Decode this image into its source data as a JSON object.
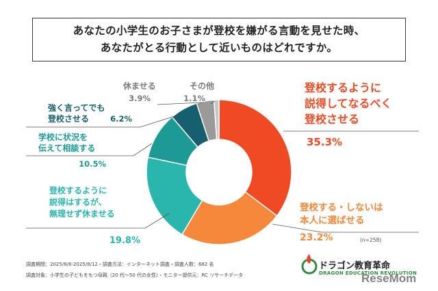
{
  "chart_data": {
    "type": "pie",
    "title": [
      "あなたの小学生のお子さまが登校を嫌がる言動を見せた時、",
      "あなたがとる行動として近いものはどれですか。"
    ],
    "categories": [
      [
        "登校するように",
        "説得してなるべく",
        "登校させる"
      ],
      [
        "登校する・しないは",
        "本人に選ばせる"
      ],
      [
        "登校するように",
        "説得はするが、",
        "無理せず休ませる"
      ],
      [
        "学校に状況を",
        "伝えて相談する"
      ],
      [
        "強く言ってでも",
        "登校させる"
      ],
      [
        "休ませる"
      ],
      [
        "その他"
      ]
    ],
    "values": [
      35.3,
      23.2,
      19.8,
      10.5,
      6.2,
      3.9,
      1.1
    ],
    "value_labels": [
      "35.3%",
      "23.2%",
      "19.8%",
      "10.5%",
      "6.2%",
      "3.9%",
      "1.1%"
    ],
    "colors": [
      "#ef4a23",
      "#f5883a",
      "#2ab5ad",
      "#1e9a96",
      "#165f6e",
      "#9a9a9a",
      "#c7c7c7"
    ],
    "label_colors": [
      "#ef4a23",
      "#f5883a",
      "#2ab5ad",
      "#1e9a96",
      "#165f6e",
      "#7a7a7a",
      "#7a7a7a"
    ],
    "sample_note": "(n=258)",
    "donut": true
  },
  "footer": {
    "line1": "調査期間：2025/8/8-2025/8/12・調査方法：インターネット調査・調査人数：682 名",
    "line2": "調査対象：小学生の子どもをもつ母親（20 代〜50 代の女性）・モニター提供元：RC リサーチデータ"
  },
  "brand": {
    "name": "ドラゴン教育革命",
    "sub": "DRAGON EDUCATION REVOLUTION",
    "watermark": "ReseMom"
  }
}
